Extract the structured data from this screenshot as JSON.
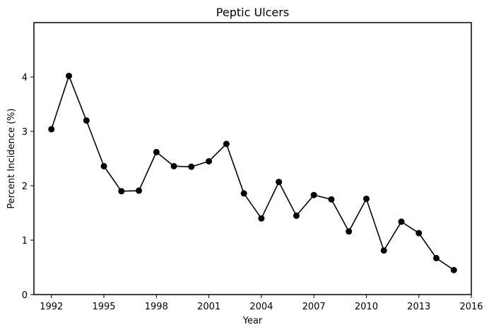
{
  "chart_data": {
    "type": "line",
    "title": "Peptic Ulcers",
    "xlabel": "Year",
    "ylabel": "Percent Incidence (%)",
    "xlim": [
      1991,
      2016
    ],
    "ylim": [
      0,
      5
    ],
    "x_ticks": [
      1992,
      1995,
      1998,
      2001,
      2004,
      2007,
      2010,
      2013,
      2016
    ],
    "y_ticks": [
      0,
      1,
      2,
      3,
      4
    ],
    "grid": false,
    "legend": null,
    "line_color": "#000000",
    "marker": "circle",
    "series": [
      {
        "x": [
          1992,
          1993,
          1994,
          1995,
          1996,
          1997,
          1998,
          1999,
          2000,
          2001,
          2002,
          2003,
          2004,
          2005,
          2006,
          2007,
          2008,
          2009,
          2010,
          2011,
          2012,
          2013,
          2014,
          2015
        ],
        "y": [
          3.04,
          4.02,
          3.2,
          2.36,
          1.9,
          1.91,
          2.62,
          2.36,
          2.35,
          2.45,
          2.77,
          1.86,
          1.4,
          2.07,
          1.45,
          1.83,
          1.75,
          1.16,
          1.76,
          0.81,
          1.34,
          1.13,
          0.67,
          0.45
        ]
      }
    ]
  }
}
